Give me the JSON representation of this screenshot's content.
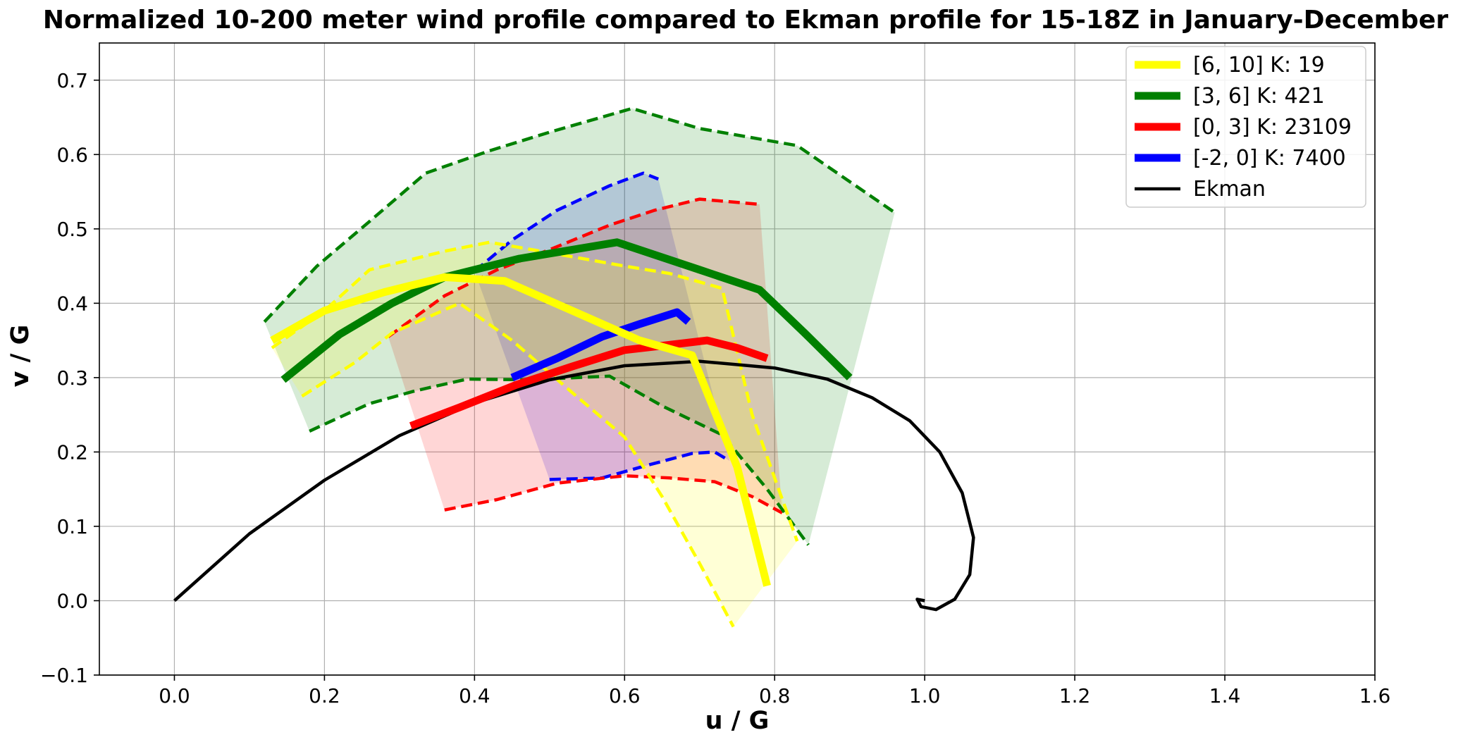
{
  "chart_data": {
    "type": "line",
    "title": "Normalized 10-200 meter wind profile compared to Ekman profile for 15-18Z in January-December",
    "xlabel": "u / G",
    "ylabel": "v / G",
    "xlim": [
      -0.1,
      1.6
    ],
    "ylim": [
      -0.1,
      0.75
    ],
    "xticks": [
      0.0,
      0.2,
      0.4,
      0.6,
      0.8,
      1.0,
      1.2,
      1.4,
      1.6
    ],
    "yticks": [
      -0.1,
      0.0,
      0.1,
      0.2,
      0.3,
      0.4,
      0.5,
      0.6,
      0.7
    ],
    "xtick_labels": [
      "0.0",
      "0.2",
      "0.4",
      "0.6",
      "0.8",
      "1.0",
      "1.2",
      "1.4",
      "1.6"
    ],
    "ytick_labels": [
      "−0.1",
      "0.0",
      "0.1",
      "0.2",
      "0.3",
      "0.4",
      "0.5",
      "0.6",
      "0.7"
    ],
    "grid": true,
    "legend_position": "top-right",
    "series": [
      {
        "name": "[6, 10] K:  19",
        "color": "#ffff00",
        "mean": [
          [
            0.13,
            0.35
          ],
          [
            0.2,
            0.39
          ],
          [
            0.28,
            0.415
          ],
          [
            0.36,
            0.435
          ],
          [
            0.44,
            0.43
          ],
          [
            0.53,
            0.39
          ],
          [
            0.62,
            0.35
          ],
          [
            0.69,
            0.33
          ],
          [
            0.75,
            0.18
          ],
          [
            0.79,
            0.02
          ]
        ],
        "upper": [
          [
            0.13,
            0.34
          ],
          [
            0.2,
            0.39
          ],
          [
            0.26,
            0.445
          ],
          [
            0.36,
            0.47
          ],
          [
            0.42,
            0.482
          ],
          [
            0.5,
            0.468
          ],
          [
            0.6,
            0.45
          ],
          [
            0.66,
            0.44
          ],
          [
            0.73,
            0.42
          ],
          [
            0.77,
            0.25
          ],
          [
            0.83,
            0.08
          ]
        ],
        "lower": [
          [
            0.17,
            0.275
          ],
          [
            0.24,
            0.32
          ],
          [
            0.29,
            0.36
          ],
          [
            0.38,
            0.4
          ],
          [
            0.45,
            0.35
          ],
          [
            0.53,
            0.28
          ],
          [
            0.6,
            0.22
          ],
          [
            0.65,
            0.14
          ],
          [
            0.7,
            0.05
          ],
          [
            0.745,
            -0.035
          ]
        ]
      },
      {
        "name": "[3, 6] K:  421",
        "color": "#008000",
        "mean": [
          [
            0.145,
            0.297
          ],
          [
            0.22,
            0.358
          ],
          [
            0.29,
            0.4
          ],
          [
            0.36,
            0.435
          ],
          [
            0.46,
            0.46
          ],
          [
            0.59,
            0.482
          ],
          [
            0.7,
            0.445
          ],
          [
            0.78,
            0.418
          ],
          [
            0.84,
            0.36
          ],
          [
            0.9,
            0.3
          ]
        ],
        "upper": [
          [
            0.12,
            0.375
          ],
          [
            0.19,
            0.45
          ],
          [
            0.26,
            0.51
          ],
          [
            0.335,
            0.575
          ],
          [
            0.42,
            0.605
          ],
          [
            0.5,
            0.63
          ],
          [
            0.61,
            0.662
          ],
          [
            0.7,
            0.635
          ],
          [
            0.83,
            0.612
          ],
          [
            0.96,
            0.522
          ]
        ],
        "lower": [
          [
            0.18,
            0.228
          ],
          [
            0.26,
            0.265
          ],
          [
            0.32,
            0.282
          ],
          [
            0.39,
            0.298
          ],
          [
            0.47,
            0.297
          ],
          [
            0.58,
            0.302
          ],
          [
            0.65,
            0.262
          ],
          [
            0.73,
            0.223
          ],
          [
            0.79,
            0.15
          ],
          [
            0.845,
            0.075
          ]
        ]
      },
      {
        "name": "[0, 3] K:  23109",
        "color": "#ff0000",
        "mean": [
          [
            0.315,
            0.235
          ],
          [
            0.38,
            0.26
          ],
          [
            0.455,
            0.29
          ],
          [
            0.53,
            0.315
          ],
          [
            0.6,
            0.337
          ],
          [
            0.66,
            0.344
          ],
          [
            0.71,
            0.35
          ],
          [
            0.75,
            0.34
          ],
          [
            0.79,
            0.326
          ]
        ],
        "upper": [
          [
            0.285,
            0.355
          ],
          [
            0.36,
            0.41
          ],
          [
            0.43,
            0.445
          ],
          [
            0.5,
            0.472
          ],
          [
            0.58,
            0.505
          ],
          [
            0.64,
            0.525
          ],
          [
            0.7,
            0.54
          ],
          [
            0.78,
            0.533
          ]
        ],
        "lower": [
          [
            0.36,
            0.122
          ],
          [
            0.43,
            0.136
          ],
          [
            0.51,
            0.158
          ],
          [
            0.6,
            0.168
          ],
          [
            0.66,
            0.165
          ],
          [
            0.72,
            0.16
          ],
          [
            0.77,
            0.14
          ],
          [
            0.81,
            0.118
          ]
        ]
      },
      {
        "name": "[-2, 0] K:  7400",
        "color": "#0000ff",
        "mean": [
          [
            0.45,
            0.3
          ],
          [
            0.51,
            0.326
          ],
          [
            0.57,
            0.355
          ],
          [
            0.62,
            0.372
          ],
          [
            0.67,
            0.388
          ],
          [
            0.685,
            0.375
          ]
        ],
        "upper": [
          [
            0.4,
            0.443
          ],
          [
            0.45,
            0.485
          ],
          [
            0.51,
            0.525
          ],
          [
            0.58,
            0.558
          ],
          [
            0.625,
            0.575
          ],
          [
            0.645,
            0.567
          ]
        ],
        "lower": [
          [
            0.5,
            0.163
          ],
          [
            0.57,
            0.165
          ],
          [
            0.63,
            0.182
          ],
          [
            0.69,
            0.198
          ],
          [
            0.72,
            0.2
          ],
          [
            0.74,
            0.188
          ]
        ]
      },
      {
        "name": "Ekman",
        "color": "#000000",
        "mean": [
          [
            0.0,
            0.0
          ],
          [
            0.1,
            0.09
          ],
          [
            0.2,
            0.162
          ],
          [
            0.3,
            0.222
          ],
          [
            0.4,
            0.266
          ],
          [
            0.5,
            0.297
          ],
          [
            0.6,
            0.316
          ],
          [
            0.7,
            0.322
          ],
          [
            0.8,
            0.313
          ],
          [
            0.87,
            0.298
          ],
          [
            0.93,
            0.273
          ],
          [
            0.98,
            0.242
          ],
          [
            1.02,
            0.2
          ],
          [
            1.05,
            0.145
          ],
          [
            1.065,
            0.085
          ],
          [
            1.06,
            0.035
          ],
          [
            1.04,
            0.002
          ],
          [
            1.015,
            -0.012
          ],
          [
            0.995,
            -0.008
          ],
          [
            0.99,
            0.002
          ],
          [
            1.0,
            0.0
          ]
        ]
      }
    ]
  }
}
